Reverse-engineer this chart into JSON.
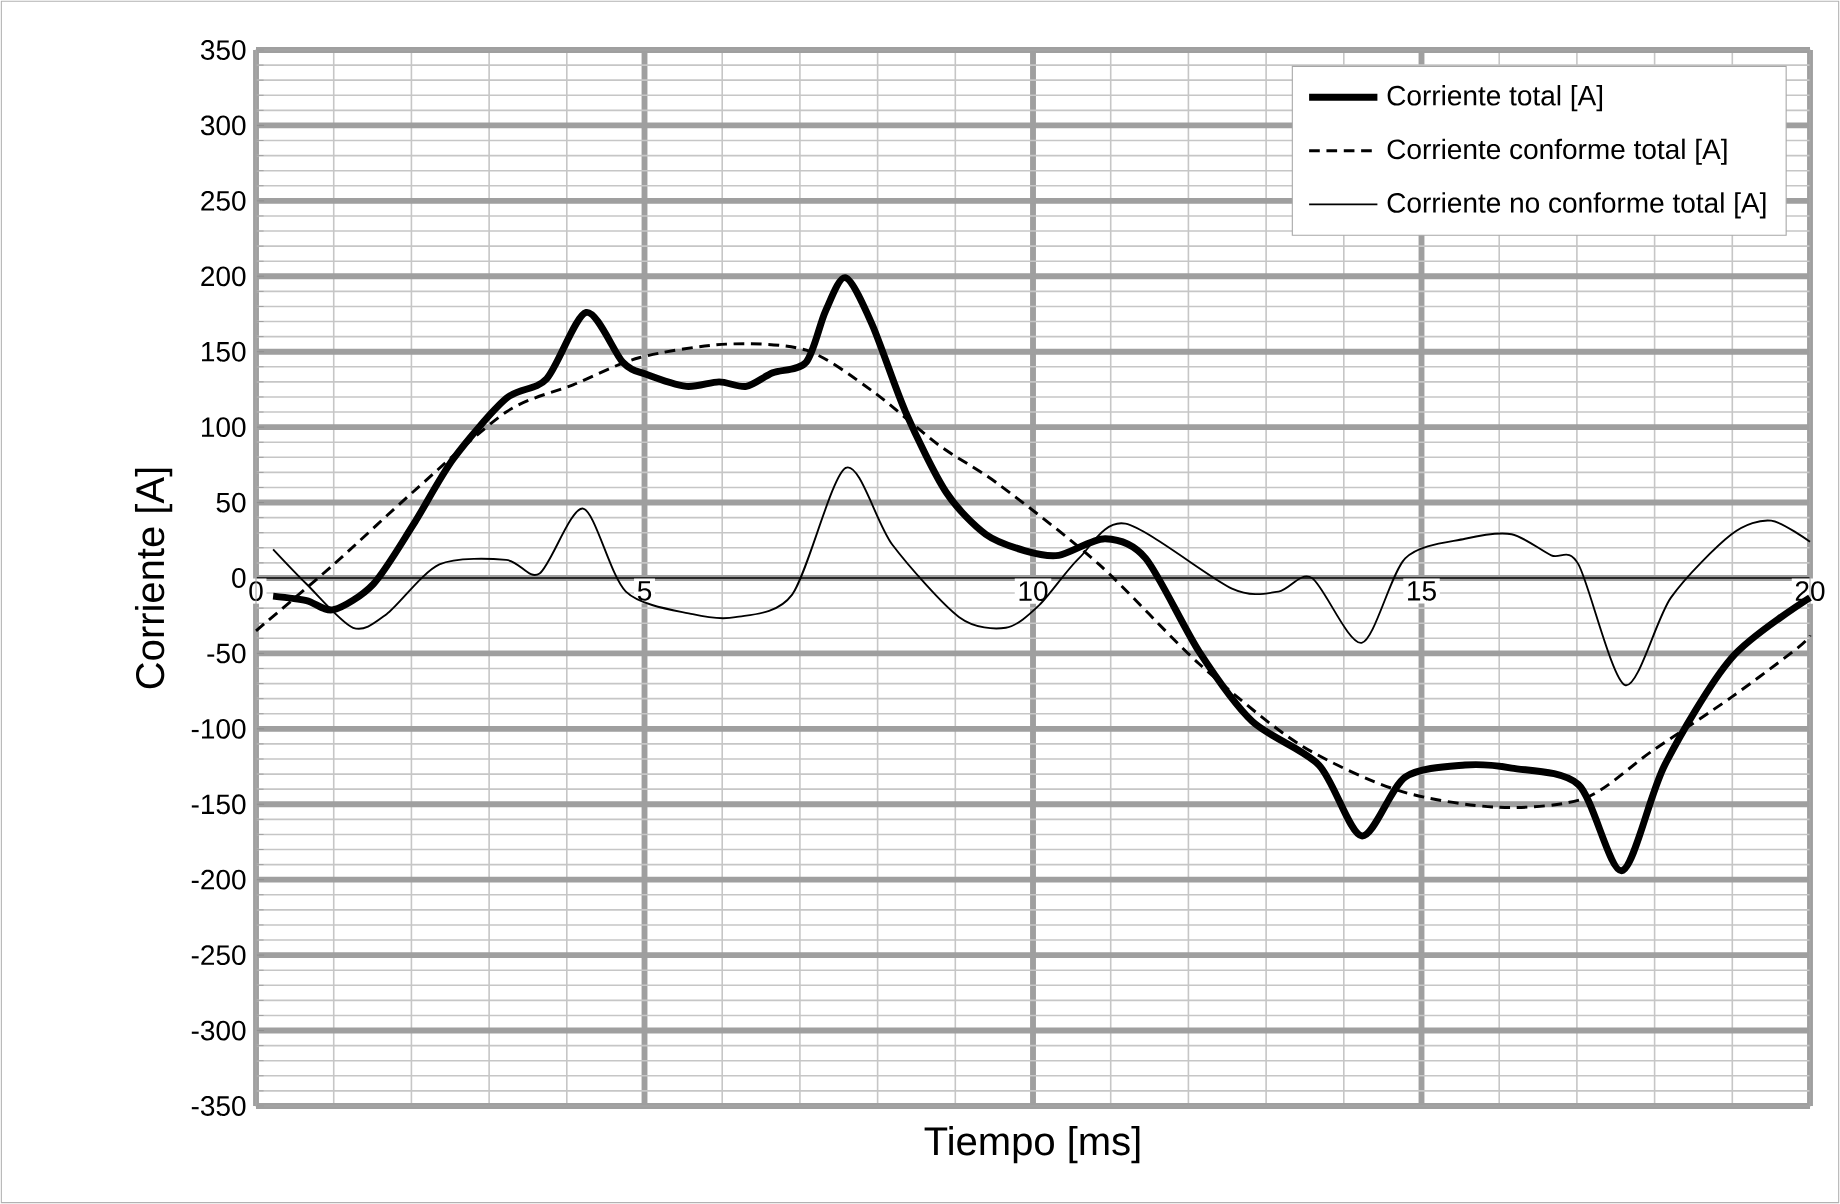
{
  "chart_data": {
    "type": "line",
    "xlabel": "Tiempo [ms]",
    "ylabel": "Corriente [A]",
    "xlim": [
      0,
      20
    ],
    "xticks": [
      0,
      5,
      10,
      15,
      20
    ],
    "ylim": [
      -350,
      350
    ],
    "yticks": [
      -350,
      -300,
      -250,
      -200,
      -150,
      -100,
      -50,
      0,
      50,
      100,
      150,
      200,
      250,
      300,
      350
    ],
    "grid": true,
    "legend": "top right",
    "marker": "none",
    "series": [
      {
        "name": "Corriente  total [A]",
        "color": "#000000",
        "line_style": "solid",
        "x": [
          0.22,
          0.65,
          1.0,
          1.51,
          2.02,
          2.54,
          3.22,
          3.74,
          4.25,
          4.72,
          5.02,
          5.54,
          5.96,
          6.31,
          6.65,
          7.08,
          7.33,
          7.59,
          7.93,
          8.36,
          8.88,
          9.39,
          9.9,
          10.33,
          10.93,
          11.45,
          12.14,
          12.82,
          13.68,
          14.23,
          14.79,
          15.56,
          16.16,
          17.02,
          17.58,
          18.13,
          18.99,
          20.0
        ],
        "values": [
          -12,
          -15,
          -21,
          -4,
          35,
          79,
          119,
          132,
          176,
          143,
          135,
          127,
          130,
          127,
          136,
          143,
          177,
          199,
          168,
          110,
          57,
          29,
          18,
          15,
          26,
          13,
          -49,
          -95,
          -124,
          -171,
          -132,
          -124,
          -126,
          -137,
          -194,
          -124,
          -53,
          -13
        ]
      },
      {
        "name": "Corriente  conforme total [A]",
        "color": "#000000",
        "line_style": "dashed",
        "x": [
          0.0,
          1.0,
          2.02,
          3.22,
          4.08,
          4.93,
          6.05,
          7.08,
          7.93,
          8.79,
          9.56,
          10.85,
          12.14,
          13.42,
          14.71,
          15.99,
          17.1,
          17.96,
          18.99,
          19.85,
          20.0
        ],
        "values": [
          -35,
          9,
          57,
          110,
          128,
          146,
          155,
          151,
          124,
          88,
          62,
          9,
          -57,
          -110,
          -141,
          -152,
          -146,
          -115,
          -79,
          -46,
          -38
        ]
      },
      {
        "name": "Corriente  no conforme total [A]",
        "color": "#000000",
        "line_style": "solid",
        "x": [
          0.22,
          0.65,
          1.25,
          1.68,
          2.36,
          3.22,
          3.65,
          4.21,
          4.76,
          5.62,
          6.17,
          6.9,
          7.59,
          8.19,
          9.05,
          9.65,
          10.08,
          10.59,
          11.19,
          12.56,
          13.16,
          13.59,
          14.23,
          14.79,
          15.56,
          16.16,
          16.67,
          17.02,
          17.62,
          18.21,
          18.99,
          19.5,
          20.0
        ],
        "values": [
          19,
          -4,
          -33,
          -24,
          9,
          12,
          3,
          46,
          -9,
          -24,
          -26,
          -11,
          73,
          22,
          -26,
          -33,
          -18,
          13,
          36,
          -7,
          -9,
          0,
          -43,
          13,
          26,
          29,
          15,
          9,
          -71,
          -13,
          29,
          38,
          24
        ]
      }
    ]
  }
}
